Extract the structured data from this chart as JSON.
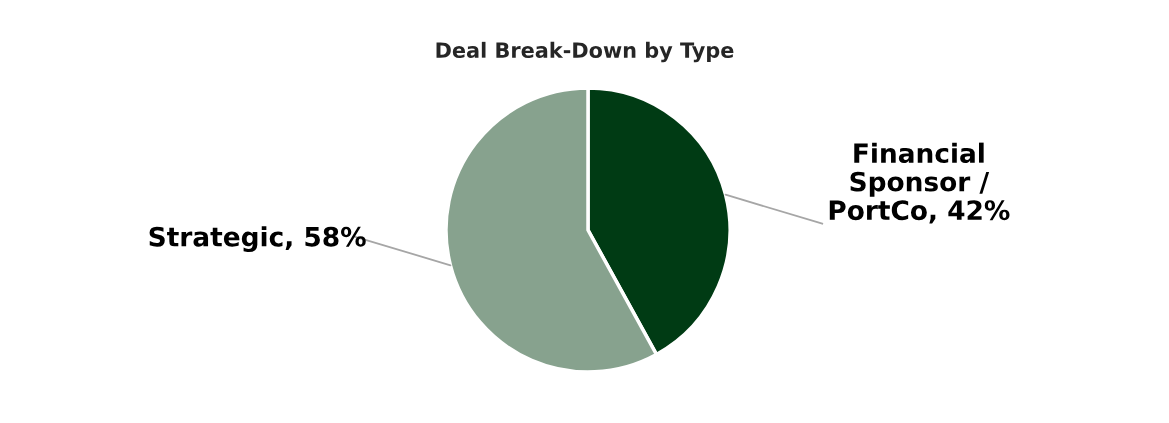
{
  "chart_data": {
    "type": "pie",
    "title": "Deal Break-Down by Type",
    "categories": [
      "Financial\nSponsor /\nPortCo",
      "Strategic"
    ],
    "values": [
      42,
      58
    ],
    "value_labels": [
      "42%",
      "58%"
    ],
    "colors": [
      "#003b14",
      "#87a28e"
    ]
  }
}
